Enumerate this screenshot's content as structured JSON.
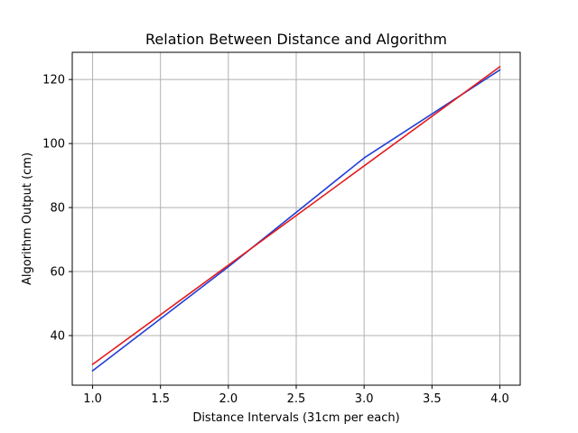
{
  "chart_data": {
    "type": "line",
    "title": "Relation Between Distance and Algorithm",
    "xlabel": "Distance Intervals (31cm per each)",
    "ylabel": "Algorithm Output (cm)",
    "xlim": [
      0.85,
      4.15
    ],
    "ylim": [
      24.5,
      128.5
    ],
    "x_ticks": [
      1.0,
      1.5,
      2.0,
      2.5,
      3.0,
      3.5,
      4.0
    ],
    "x_tick_labels": [
      "1.0",
      "1.5",
      "2.0",
      "2.5",
      "3.0",
      "3.5",
      "4.0"
    ],
    "y_ticks": [
      40,
      60,
      80,
      100,
      120
    ],
    "y_tick_labels": [
      "40",
      "60",
      "80",
      "100",
      "120"
    ],
    "grid": true,
    "series": [
      {
        "color": "#1f3fd6",
        "x": [
          1,
          2,
          3,
          4
        ],
        "y": [
          29,
          61.5,
          95.5,
          123
        ]
      },
      {
        "color": "#e31a1c",
        "x": [
          1,
          4
        ],
        "y": [
          31,
          124
        ]
      }
    ]
  }
}
